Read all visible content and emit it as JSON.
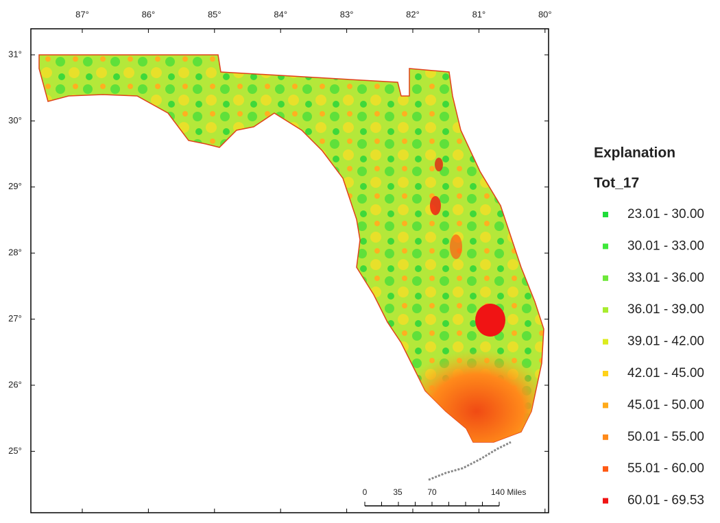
{
  "map": {
    "longitude_labels": [
      "87°",
      "86°",
      "85°",
      "84°",
      "83°",
      "82°",
      "81°",
      "80°"
    ],
    "latitude_labels": [
      "31°",
      "30°",
      "29°",
      "28°",
      "27°",
      "26°",
      "25°"
    ],
    "legend": {
      "heading": "Explanation",
      "title": "Tot_17",
      "items": [
        {
          "label": "23.01 - 30.00",
          "color": "#1fdc3a"
        },
        {
          "label": "30.01 - 33.00",
          "color": "#3ee83a"
        },
        {
          "label": "33.01 - 36.00",
          "color": "#6ee83a"
        },
        {
          "label": "36.01 - 39.00",
          "color": "#a8ec2e"
        },
        {
          "label": "39.01 - 42.00",
          "color": "#dcec1e"
        },
        {
          "label": "42.01 - 45.00",
          "color": "#ffd21a"
        },
        {
          "label": "45.01 - 50.00",
          "color": "#ffaa1a"
        },
        {
          "label": "50.01 - 55.00",
          "color": "#ff8a1a"
        },
        {
          "label": "55.01 - 60.00",
          "color": "#ff5a14"
        },
        {
          "label": "60.01 - 69.53",
          "color": "#f01414"
        }
      ]
    },
    "scale_bar": {
      "labels": [
        "0",
        "35",
        "70",
        "140 Miles"
      ]
    }
  }
}
